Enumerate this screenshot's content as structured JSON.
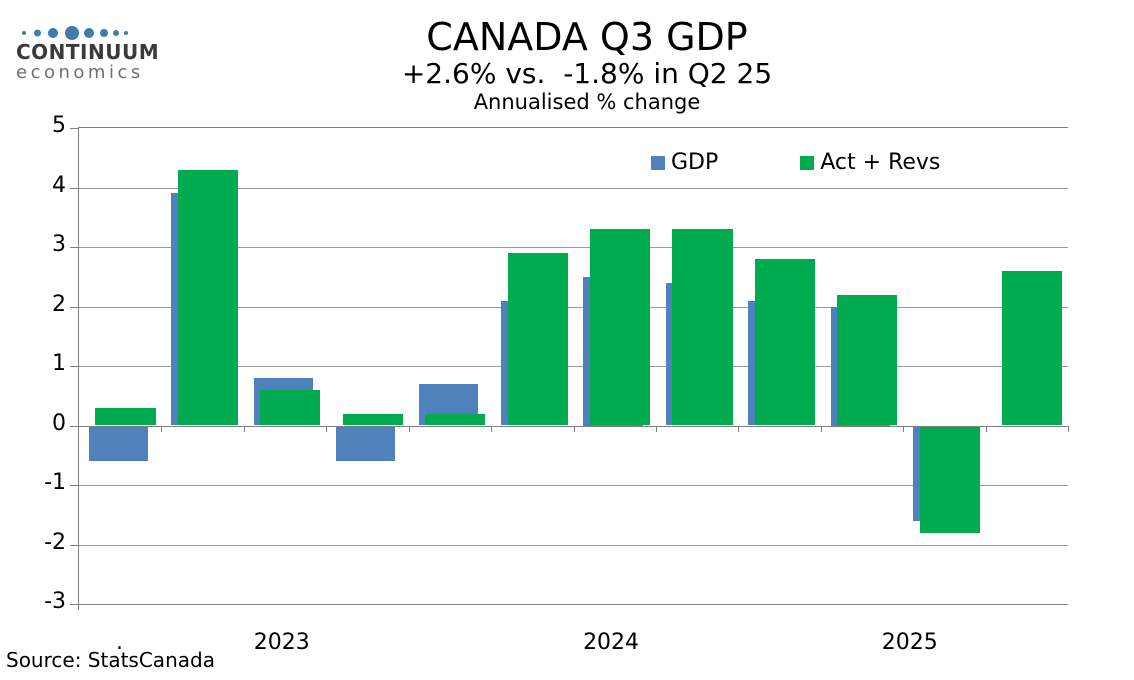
{
  "logo": {
    "name": "CONTINUUM",
    "subname": "economics",
    "dot_color": "#3d7cac"
  },
  "header": {
    "title": "CANADA Q3 GDP",
    "subtitle": "+2.6% vs.  -1.8% in Q2 25",
    "note": "Annualised % change"
  },
  "source": "Source: StatsCanada",
  "colors": {
    "gdp_blue": "#4F81BD",
    "act_revs_green": "#00AB50",
    "grid_gray": "#999999",
    "axis_gray": "#808080"
  },
  "chart_data": {
    "type": "bar",
    "title": "CANADA Q3 GDP",
    "subtitle": "+2.6% vs.  -1.8% in Q2 25",
    "units": "Annualised % change",
    "ylim": [
      -3,
      5
    ],
    "yticks": [
      5,
      4,
      3,
      2,
      1,
      0,
      -1,
      -2,
      -3
    ],
    "grid": true,
    "legend_position": "top-inside",
    "n_groups": 12,
    "x_labels": [
      {
        "text": ".",
        "pos": 0.042
      },
      {
        "text": "2023",
        "pos": 0.206
      },
      {
        "text": "2024",
        "pos": 0.539
      },
      {
        "text": "2025",
        "pos": 0.841
      }
    ],
    "series": [
      {
        "name": "GDP",
        "color": "#4F81BD",
        "values": [
          -0.6,
          3.9,
          0.8,
          -0.6,
          0.7,
          2.1,
          2.5,
          2.4,
          2.1,
          2.0,
          -1.6,
          null
        ]
      },
      {
        "name": "Act + Revs",
        "color": "#00AB50",
        "values": [
          0.3,
          4.3,
          0.6,
          0.2,
          0.2,
          2.9,
          3.3,
          3.3,
          2.8,
          2.2,
          -1.8,
          2.6
        ]
      }
    ]
  }
}
